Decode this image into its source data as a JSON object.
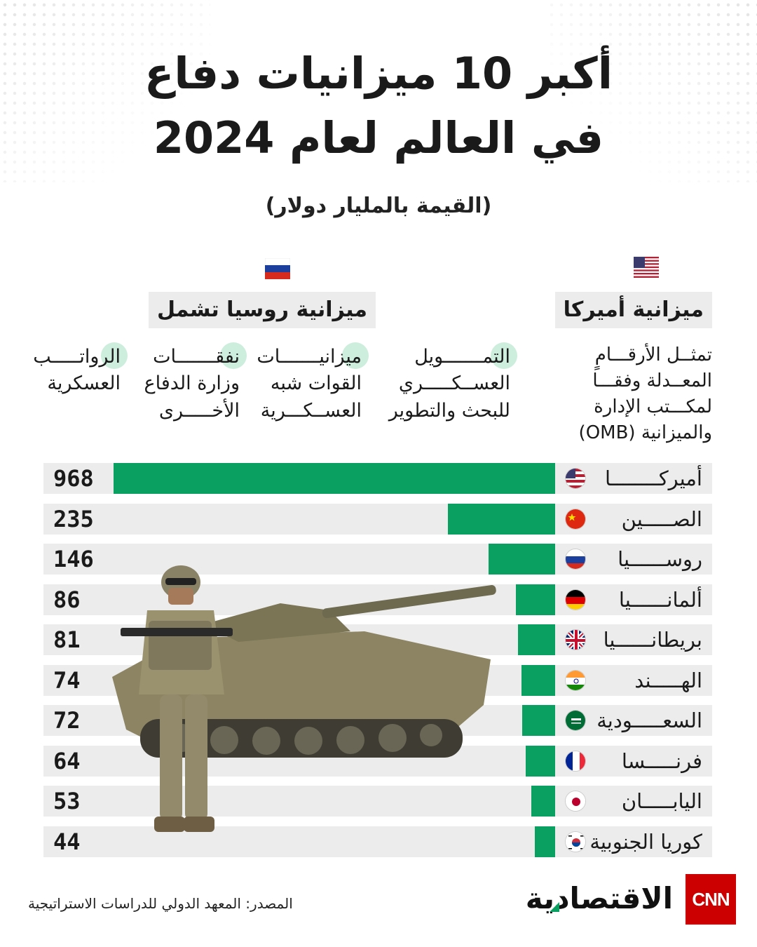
{
  "header": {
    "title_line1": "أكبر 10 ميزانيات دفاع",
    "title_line2": "في العالم لعام 2024",
    "subtitle": "(القيمة بالمليار دولار)"
  },
  "notes": {
    "usa_label": "ميزانية أميركا",
    "usa_text": "تمثــل الأرقـــامٍ\nالمعــدلة وفقـــا\nلمكـــتب الإدارة\nوالميزانية (OMB)",
    "russia_label": "ميزانية روسيا تشمل",
    "russia_items": [
      "التمـــــــويل\nالعســكـــــري\nللبحث والتطوير",
      "ميزانيـــــــات\nالقوات شبه\nالعســكـــرية",
      "نفقـــــــات\nوزارة الدفاع\nالأخـــــرى",
      "الرواتـــــب\nالعسكرية"
    ]
  },
  "chart_data": {
    "type": "bar",
    "orientation": "horizontal",
    "categories": [
      "أميركــــــــا",
      "الصـــــين",
      "روســــــيا",
      "ألمانــــــيا",
      "بريطانــــــيا",
      "الهـــــند",
      "السعـــــودية",
      "فرنـــــسا",
      "اليابـــــان",
      "كوريا الجنوبية"
    ],
    "values": [
      968,
      235,
      146,
      86,
      81,
      74,
      72,
      64,
      53,
      44
    ],
    "value_labels": [
      "968",
      "235",
      "146",
      "86",
      "81",
      "74",
      "72",
      "64",
      "53",
      "44"
    ],
    "flags": [
      "us",
      "cn",
      "ru",
      "de",
      "gb",
      "in",
      "sa",
      "fr",
      "jp",
      "kr"
    ],
    "unit": "مليار دولار",
    "xlim": [
      0,
      968
    ],
    "bar_color": "#0aa062",
    "track_color": "#ececec"
  },
  "footer": {
    "source": "المصدر: المعهد الدولي للدراسات الاستراتيجية",
    "brand": "الاقتصادية",
    "cnn": "CNN"
  },
  "colors": {
    "accent": "#0aa062",
    "cnn_red": "#cc0000"
  }
}
